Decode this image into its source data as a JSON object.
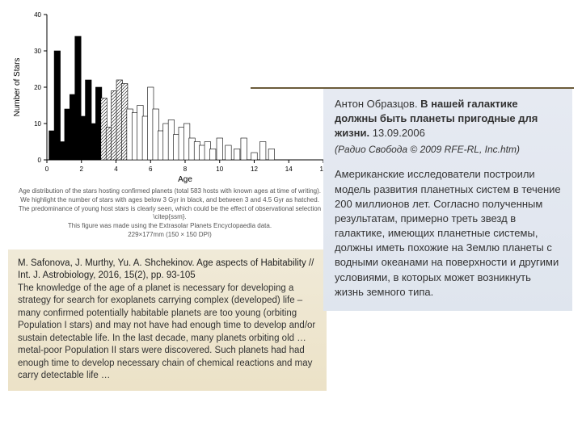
{
  "chart": {
    "type": "histogram",
    "xlabel": "Age",
    "ylabel": "Number of Stars",
    "xlim": [
      0,
      16
    ],
    "ylim": [
      0,
      40
    ],
    "xtick_step": 2,
    "ytick_step": 10,
    "background_color": "#ffffff",
    "axis_color": "#000000",
    "label_fontsize": 10,
    "tick_fontsize": 8,
    "bar_width": 0.35,
    "bin_centers": [
      0.3,
      0.6,
      0.9,
      1.2,
      1.5,
      1.8,
      2.1,
      2.4,
      2.7,
      3.0,
      3.3,
      3.6,
      3.9,
      4.2,
      4.5,
      4.8,
      5.1,
      5.4,
      5.7,
      6.0,
      6.3,
      6.6,
      6.9,
      7.2,
      7.5,
      7.8,
      8.1,
      8.4,
      8.7,
      9.0,
      9.3,
      9.6,
      10.0,
      10.5,
      11.0,
      11.4,
      12.0,
      12.5,
      13.0
    ],
    "counts": [
      8,
      30,
      5,
      14,
      18,
      34,
      12,
      22,
      10,
      20,
      17,
      9,
      19,
      22,
      21,
      14,
      13,
      15,
      12,
      20,
      14,
      8,
      10,
      11,
      7,
      9,
      10,
      6,
      5,
      4,
      5,
      3,
      6,
      4,
      3,
      6,
      2,
      5,
      3
    ],
    "black_cutoff_age": 3.0,
    "hatch_min": 3.0,
    "hatch_max": 4.5,
    "fill_black": "#000000",
    "fill_open": "#ffffff",
    "stroke": "#000000",
    "stroke_width": 0.6
  },
  "caption": {
    "line1": "Age distribution of the stars hosting confirmed planets (total 583 hosts with known ages at time of writing).",
    "line2": "We highlight the number of stars with ages below 3 Gyr in black, and between 3 and 4.5 Gyr as hatched.",
    "line3": "The predominance of young host stars is clearly seen, which could be the effect of observational selection",
    "line4": "\\citep{ssm}.",
    "line5": "This figure was made using the Extrasolar Planets Encyclopaedia data.",
    "line6": "229×177mm (150 × 150 DPI)"
  },
  "citation": {
    "authors_title": "M. Safonova, J. Murthy, Yu. A. Shchekinov. Age aspects of Habitability // Int. J. Astrobiology, 2016, 15(2), pp. 93-105",
    "body": "The knowledge of the age of a planet is necessary for developing a strategy for search for exoplanets carrying complex (developed) life – many confirmed potentially habitable planets are too young (orbiting Population I stars) and may not have had enough time to develop and/or sustain detectable life. In the last decade, many planets orbiting old … metal-poor Population II stars were discovered. Such planets had had enough time to develop necessary chain of chemical reactions and may carry detectable life …"
  },
  "right_panel": {
    "author": "Антон Образцов. ",
    "title_bold": "В нашей галактике должны быть планеты пригодные для жизни.",
    "date": " 13.09.2006",
    "source": "(Радио Свобода © 2009 RFE-RL, Inc.htm)",
    "body": "Американские исследователи построили модель развития планетных систем в течение 200 миллионов лет. Согласно полученным результатам, примерно треть звезд в галактике, имеющих планетные системы, должны иметь похожие на Землю планеты с водными океанами на поверхности и другими условиями, в которых может возникнуть жизнь земного типа."
  },
  "colors": {
    "hr": "#6b5b3a",
    "left_box_bg_top": "#f0ead8",
    "left_box_bg_bot": "#ece2c7",
    "right_box_bg_top": "#e6eaf2",
    "right_box_bg_bot": "#dfe5ee"
  }
}
